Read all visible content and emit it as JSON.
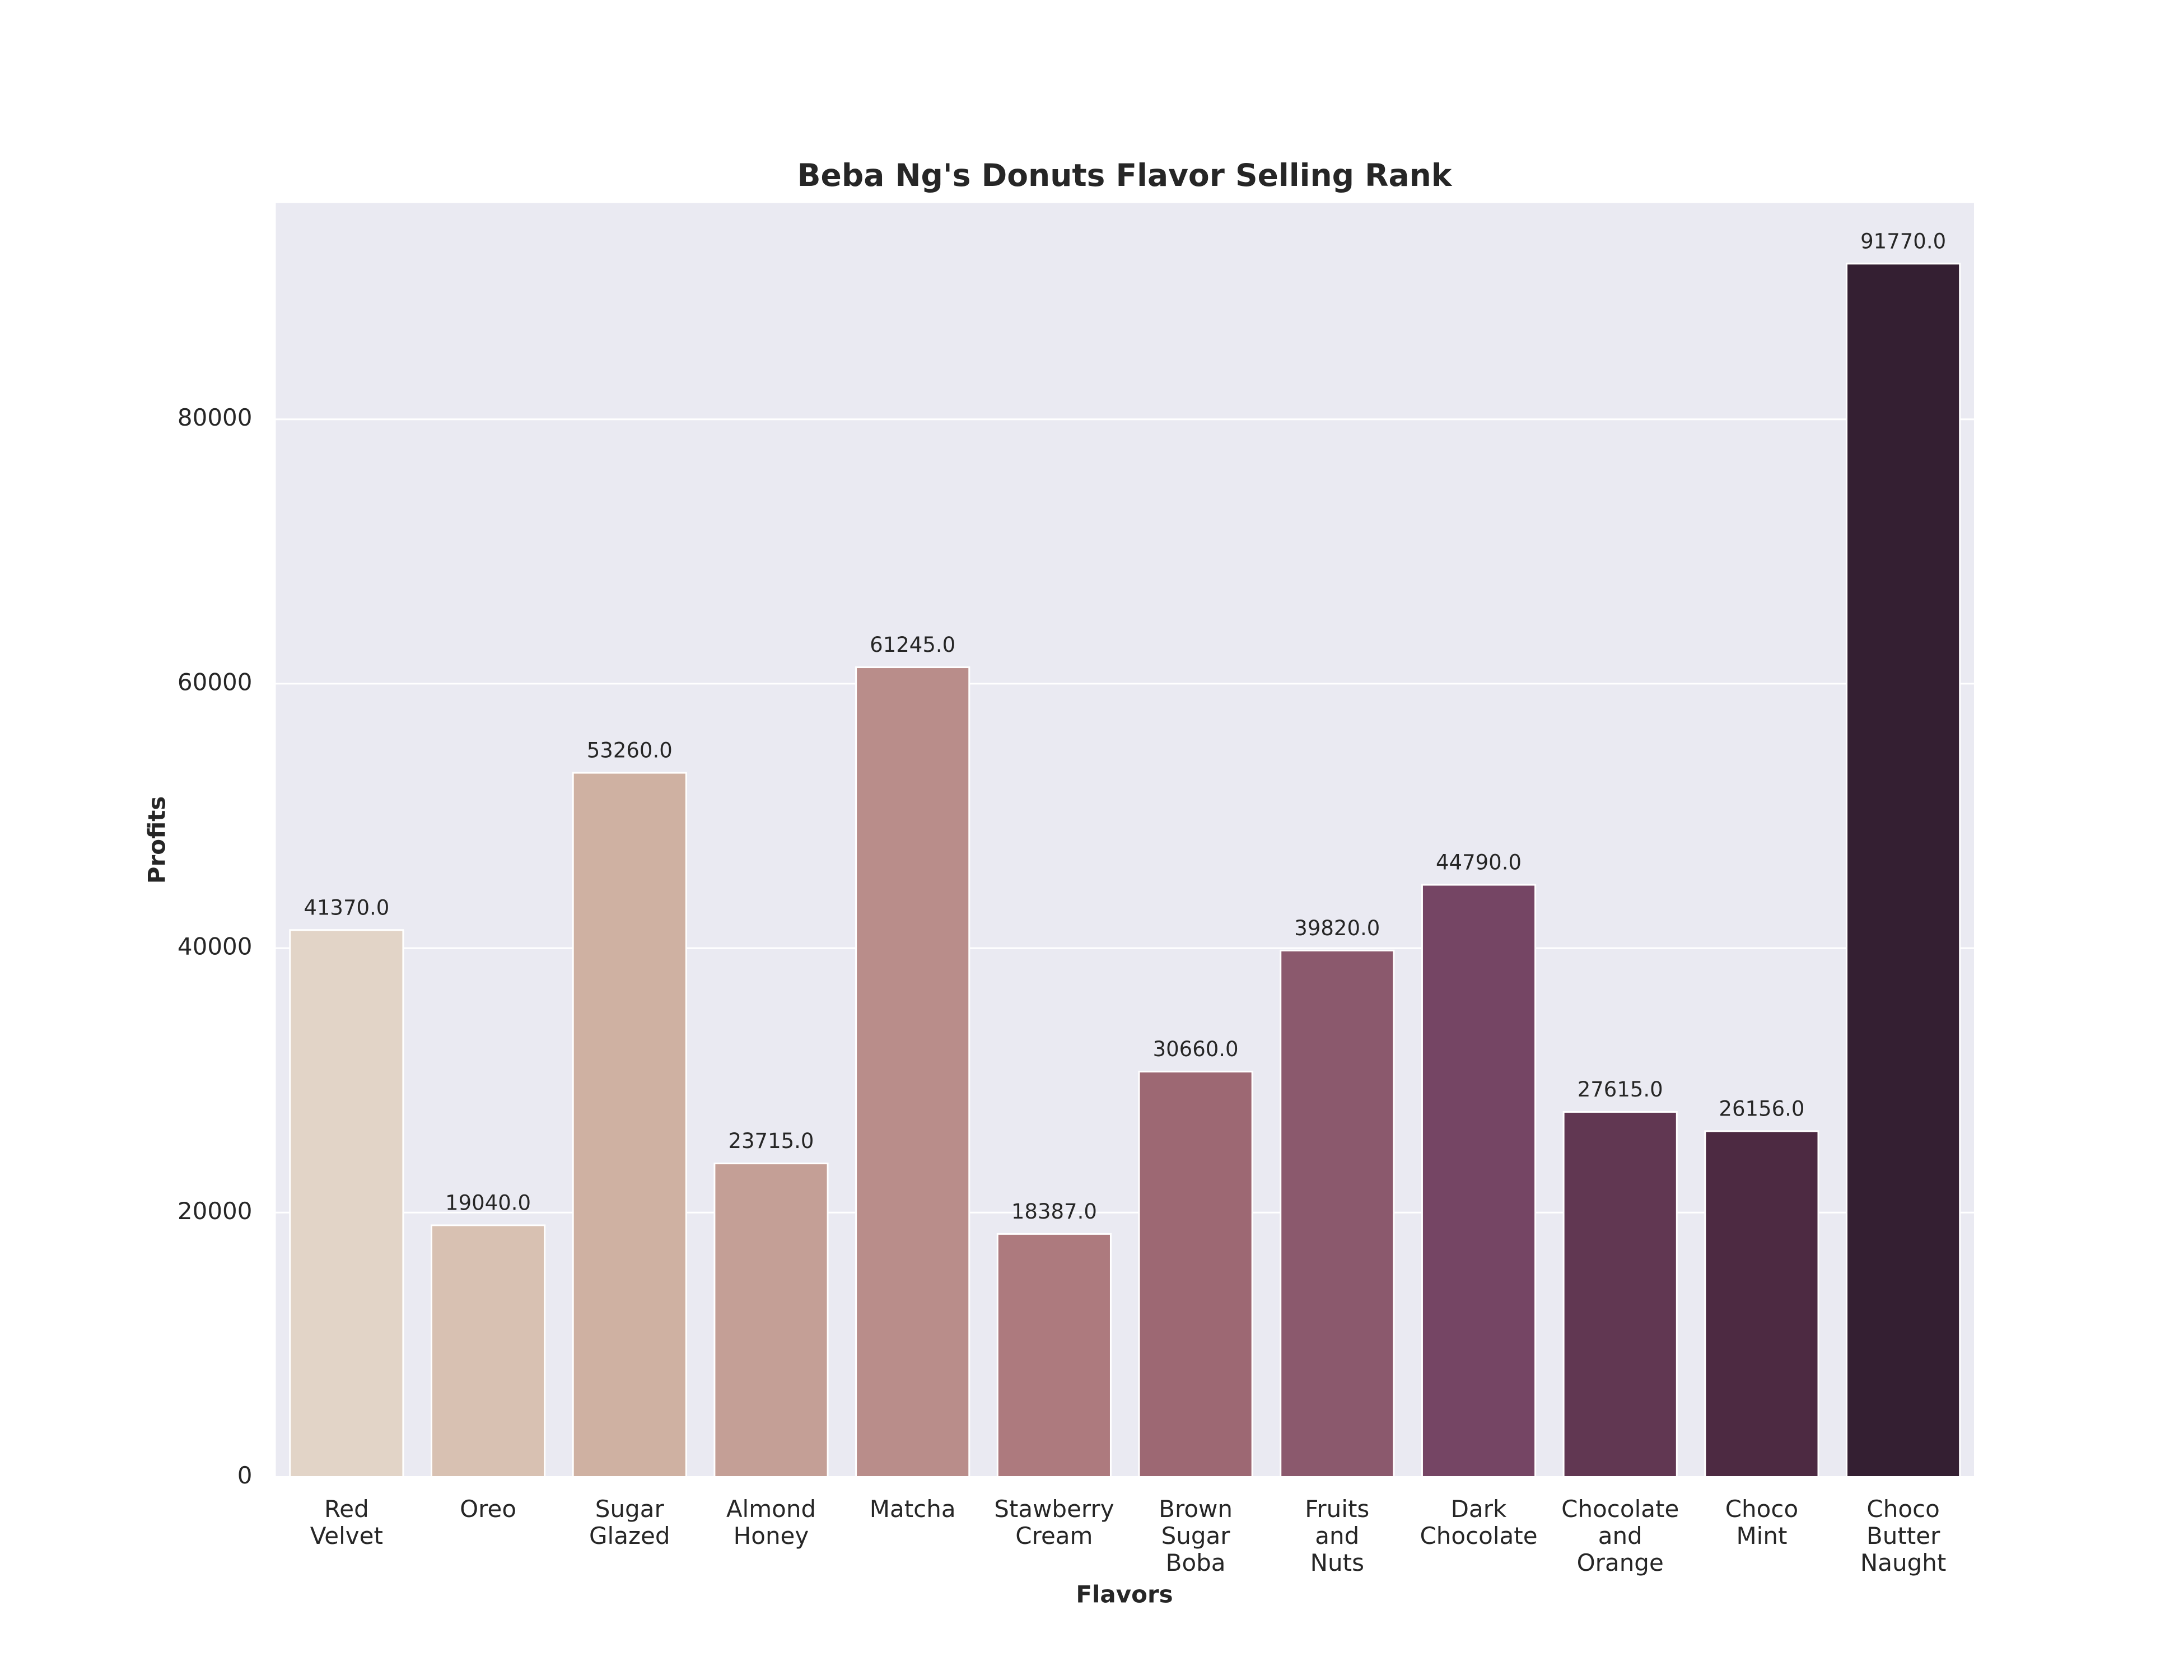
{
  "chart_data": {
    "type": "bar",
    "title": "Beba Ng's Donuts Flavor Selling Rank",
    "xlabel": "Flavors",
    "ylabel": "Profits",
    "categories": [
      "Red Velvet",
      "Oreo",
      "Sugar Glazed",
      "Almond Honey",
      "Matcha",
      "Stawberry Cream",
      "Brown Sugar Boba",
      "Fruits and Nuts",
      "Dark Chocolate",
      "Chocolate and Orange",
      "Choco Mint",
      "Choco Butter Naught"
    ],
    "values": [
      41370,
      19040,
      53260,
      23715,
      61245,
      18387,
      30660,
      39820,
      44790,
      27615,
      26156,
      91770
    ],
    "value_labels": [
      "41370.0",
      "19040.0",
      "53260.0",
      "23715.0",
      "61245.0",
      "18387.0",
      "30660.0",
      "39820.0",
      "44790.0",
      "27615.0",
      "26156.0",
      "91770.0"
    ],
    "colors": [
      "#e2d4c7",
      "#d8c1b2",
      "#cfb1a2",
      "#c49f96",
      "#b98d8a",
      "#ad7a7e",
      "#9d6873",
      "#8b596d",
      "#754564",
      "#613752",
      "#4d2a42",
      "#341f32"
    ],
    "ylim": [
      0,
      96358.5
    ],
    "yticks": [
      0,
      20000,
      40000,
      60000,
      80000
    ],
    "grid": true
  }
}
